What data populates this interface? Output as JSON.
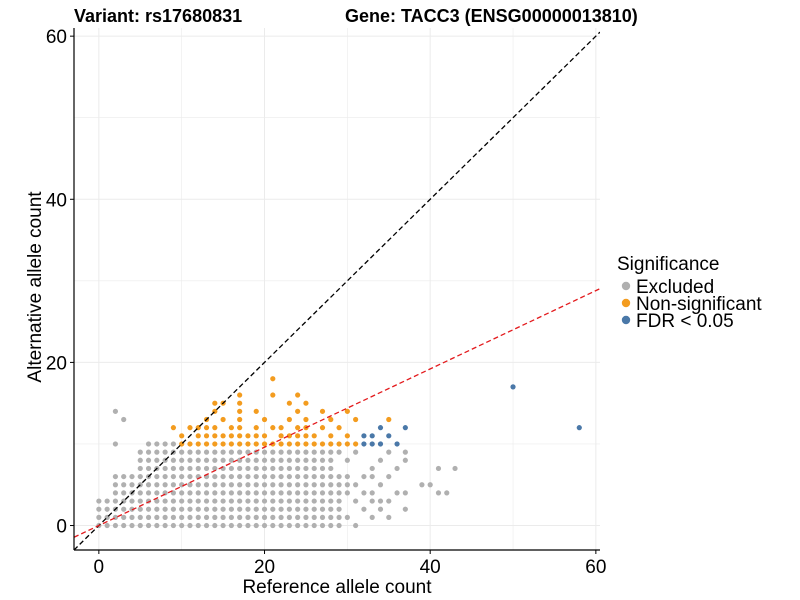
{
  "chart_data": {
    "type": "scatter",
    "title_variant": "Variant: rs17680831",
    "title_gene": "Gene: TACC3 (ENSG00000013810)",
    "xlabel": "Reference allele count",
    "ylabel": "Alternative allele count",
    "xlim": [
      -3,
      60.5
    ],
    "ylim": [
      -3,
      61
    ],
    "xticks": [
      0,
      20,
      40,
      60
    ],
    "yticks": [
      0,
      20,
      40,
      60
    ],
    "grid": true,
    "legend": {
      "title": "Significance",
      "position": "right",
      "entries": [
        {
          "label": "Excluded",
          "color": "#b0b0b0"
        },
        {
          "label": "Non-significant",
          "color": "#f39c1f"
        },
        {
          "label": "FDR < 0.05",
          "color": "#4a78a8"
        }
      ]
    },
    "reference_lines": [
      {
        "name": "identity",
        "intercept": 0,
        "slope": 1,
        "color": "#000000",
        "dash": "dashed"
      },
      {
        "name": "fit",
        "intercept": 0,
        "slope": 0.48,
        "color": "#e3191c",
        "dash": "dashed"
      }
    ],
    "series": [
      {
        "name": "Excluded",
        "color": "#b0b0b0",
        "grid_ranges": [
          {
            "y_min": 0,
            "y_max": 3,
            "x_min": 0,
            "x_max": 29
          },
          {
            "y_min": 4,
            "y_max": 6,
            "x_min": 2,
            "x_max": 30
          },
          {
            "y_min": 7,
            "y_max": 9,
            "x_min": 5,
            "x_max": 28
          },
          {
            "y_min": 10,
            "y_max": 10,
            "x_min": 6,
            "x_max": 9
          }
        ],
        "points": [
          [
            2,
            14
          ],
          [
            3,
            13
          ],
          [
            2,
            10
          ],
          [
            31,
            0
          ],
          [
            30,
            1
          ],
          [
            32,
            2
          ],
          [
            31,
            3
          ],
          [
            33,
            4
          ],
          [
            34,
            5
          ],
          [
            35,
            6
          ],
          [
            36,
            7
          ],
          [
            37,
            8
          ],
          [
            37,
            9
          ],
          [
            33,
            7
          ],
          [
            34,
            8
          ],
          [
            35,
            9
          ],
          [
            32,
            6
          ],
          [
            29,
            9
          ],
          [
            30,
            8
          ],
          [
            31,
            9
          ],
          [
            33,
            1
          ],
          [
            34,
            2
          ],
          [
            35,
            3
          ],
          [
            36,
            4
          ],
          [
            33,
            3
          ],
          [
            32,
            4
          ],
          [
            37,
            4
          ],
          [
            39,
            5
          ],
          [
            40,
            5
          ],
          [
            41,
            4
          ],
          [
            42,
            4
          ],
          [
            41,
            7
          ],
          [
            43,
            7
          ],
          [
            37,
            2
          ],
          [
            35,
            1
          ],
          [
            34,
            3
          ],
          [
            33,
            6
          ],
          [
            31,
            5
          ]
        ]
      },
      {
        "name": "Non-significant",
        "color": "#f39c1f",
        "points": [
          [
            10,
            10
          ],
          [
            11,
            10
          ],
          [
            12,
            10
          ],
          [
            13,
            10
          ],
          [
            14,
            10
          ],
          [
            15,
            10
          ],
          [
            16,
            10
          ],
          [
            17,
            10
          ],
          [
            18,
            10
          ],
          [
            19,
            10
          ],
          [
            20,
            10
          ],
          [
            21,
            10
          ],
          [
            22,
            10
          ],
          [
            23,
            10
          ],
          [
            24,
            10
          ],
          [
            25,
            10
          ],
          [
            26,
            10
          ],
          [
            27,
            10
          ],
          [
            28,
            10
          ],
          [
            29,
            10
          ],
          [
            30,
            10
          ],
          [
            31,
            10
          ],
          [
            10,
            11
          ],
          [
            12,
            11
          ],
          [
            13,
            11
          ],
          [
            14,
            11
          ],
          [
            15,
            11
          ],
          [
            16,
            11
          ],
          [
            17,
            11
          ],
          [
            18,
            11
          ],
          [
            19,
            11
          ],
          [
            20,
            11
          ],
          [
            22,
            11
          ],
          [
            23,
            11
          ],
          [
            24,
            11
          ],
          [
            25,
            11
          ],
          [
            26,
            11
          ],
          [
            28,
            11
          ],
          [
            30,
            11
          ],
          [
            9,
            12
          ],
          [
            11,
            12
          ],
          [
            12,
            12
          ],
          [
            13,
            12
          ],
          [
            14,
            12
          ],
          [
            16,
            12
          ],
          [
            17,
            12
          ],
          [
            19,
            12
          ],
          [
            21,
            12
          ],
          [
            22,
            12
          ],
          [
            24,
            12
          ],
          [
            25,
            12
          ],
          [
            27,
            12
          ],
          [
            29,
            12
          ],
          [
            13,
            13
          ],
          [
            15,
            13
          ],
          [
            17,
            13
          ],
          [
            20,
            13
          ],
          [
            23,
            13
          ],
          [
            25,
            13
          ],
          [
            28,
            13
          ],
          [
            31,
            13
          ],
          [
            35,
            13
          ],
          [
            14,
            14
          ],
          [
            17,
            14
          ],
          [
            19,
            14
          ],
          [
            24,
            14
          ],
          [
            27,
            14
          ],
          [
            30,
            14
          ],
          [
            14,
            15
          ],
          [
            15,
            15
          ],
          [
            17,
            15
          ],
          [
            23,
            15
          ],
          [
            25,
            15
          ],
          [
            17,
            16
          ],
          [
            21,
            16
          ],
          [
            24,
            16
          ],
          [
            21,
            18
          ]
        ]
      },
      {
        "name": "FDR < 0.05",
        "color": "#4a78a8",
        "points": [
          [
            32,
            11
          ],
          [
            33,
            11
          ],
          [
            32,
            10
          ],
          [
            33,
            10
          ],
          [
            34,
            10
          ],
          [
            36,
            10
          ],
          [
            35,
            11
          ],
          [
            37,
            12
          ],
          [
            34,
            12
          ],
          [
            50,
            17
          ],
          [
            58,
            12
          ]
        ]
      }
    ]
  }
}
